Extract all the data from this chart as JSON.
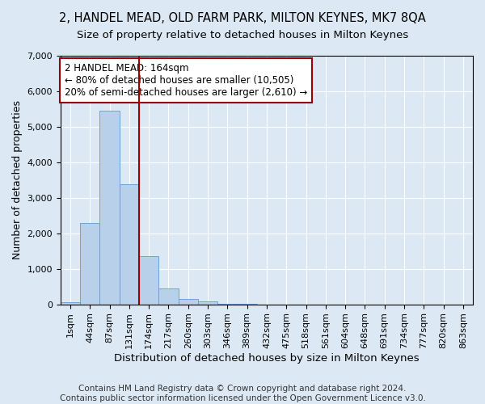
{
  "title": "2, HANDEL MEAD, OLD FARM PARK, MILTON KEYNES, MK7 8QA",
  "subtitle": "Size of property relative to detached houses in Milton Keynes",
  "xlabel": "Distribution of detached houses by size in Milton Keynes",
  "ylabel": "Number of detached properties",
  "footer_line1": "Contains HM Land Registry data © Crown copyright and database right 2024.",
  "footer_line2": "Contains public sector information licensed under the Open Government Licence v3.0.",
  "categories": [
    "1sqm",
    "44sqm",
    "87sqm",
    "131sqm",
    "174sqm",
    "217sqm",
    "260sqm",
    "303sqm",
    "346sqm",
    "389sqm",
    "432sqm",
    "475sqm",
    "518sqm",
    "561sqm",
    "604sqm",
    "648sqm",
    "691sqm",
    "734sqm",
    "777sqm",
    "820sqm",
    "863sqm"
  ],
  "values": [
    55,
    2280,
    5450,
    3390,
    1350,
    450,
    160,
    80,
    10,
    4,
    2,
    1,
    0,
    0,
    0,
    0,
    0,
    0,
    0,
    0,
    0
  ],
  "bar_color": "#b8d0ea",
  "bar_edge_color": "#6699cc",
  "vline_x_index": 3,
  "vline_color": "#990000",
  "annotation_text": "2 HANDEL MEAD: 164sqm\n← 80% of detached houses are smaller (10,505)\n20% of semi-detached houses are larger (2,610) →",
  "annotation_box_color": "#ffffff",
  "annotation_box_edge_color": "#990000",
  "ylim": [
    0,
    7000
  ],
  "yticks": [
    0,
    1000,
    2000,
    3000,
    4000,
    5000,
    6000,
    7000
  ],
  "bg_color": "#dce9f5",
  "plot_bg_color": "#dce9f5",
  "grid_color": "#ffffff",
  "title_fontsize": 10.5,
  "subtitle_fontsize": 9.5,
  "xlabel_fontsize": 9.5,
  "ylabel_fontsize": 9,
  "tick_fontsize": 8,
  "annotation_fontsize": 8.5,
  "footer_fontsize": 7.5
}
